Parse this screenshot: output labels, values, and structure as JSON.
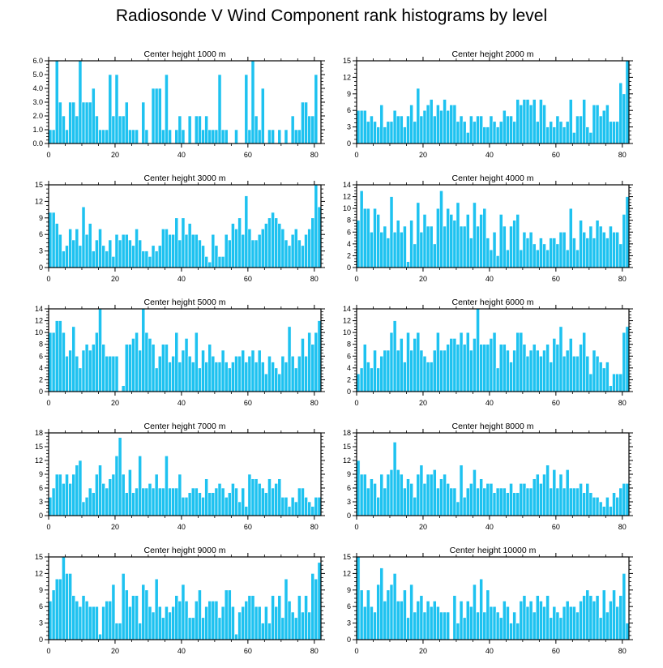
{
  "title": "Radiosonde V Wind Component rank histograms by level",
  "colors": {
    "bar": "#1ec2f0",
    "bar_edge": "#ffffff",
    "axis": "#000000"
  },
  "chart_data": [
    {
      "type": "bar",
      "title": "Center height 1000 m",
      "xlim": [
        0,
        82
      ],
      "ylim": [
        0,
        6
      ],
      "xticks": [
        0,
        20,
        40,
        60,
        80
      ],
      "xtick_labels": [
        "0",
        "20",
        "40",
        "60",
        "80"
      ],
      "yticks": [
        0,
        1,
        2,
        3,
        4,
        5,
        6
      ],
      "ytick_labels": [
        "0.0",
        "1.0",
        "2.0",
        "3.0",
        "4.0",
        "5.0",
        "6.0"
      ],
      "values": [
        1,
        1,
        6,
        3,
        2,
        1,
        3,
        3,
        2,
        6,
        3,
        3,
        3,
        4,
        2,
        1,
        1,
        1,
        5,
        2,
        5,
        2,
        2,
        3,
        1,
        1,
        1,
        0,
        3,
        1,
        0,
        4,
        4,
        4,
        1,
        5,
        1,
        0,
        1,
        2,
        1,
        0,
        2,
        0,
        2,
        2,
        1,
        2,
        1,
        1,
        1,
        5,
        1,
        1,
        0,
        0,
        1,
        0,
        0,
        5,
        1,
        6,
        2,
        1,
        4,
        0,
        1,
        1,
        0,
        1,
        0,
        1,
        0,
        2,
        1,
        1,
        3,
        3,
        2,
        2,
        5
      ]
    },
    {
      "type": "bar",
      "title": "Center height 2000 m",
      "xlim": [
        0,
        82
      ],
      "ylim": [
        0,
        15
      ],
      "xticks": [
        0,
        20,
        40,
        60,
        80
      ],
      "xtick_labels": [
        "0",
        "20",
        "40",
        "60",
        "80"
      ],
      "yticks": [
        0,
        3,
        6,
        9,
        12,
        15
      ],
      "ytick_labels": [
        "0",
        "3",
        "6",
        "9",
        "12",
        "15"
      ],
      "values": [
        6,
        6,
        6,
        4,
        5,
        4,
        3,
        7,
        3,
        4,
        4,
        6,
        5,
        5,
        3,
        5,
        7,
        4,
        10,
        5,
        6,
        7,
        8,
        5,
        7,
        6,
        8,
        6,
        7,
        7,
        4,
        5,
        4,
        2,
        5,
        4,
        5,
        5,
        3,
        3,
        5,
        4,
        3,
        4,
        6,
        5,
        5,
        4,
        8,
        7,
        8,
        8,
        7,
        8,
        4,
        8,
        7,
        3,
        4,
        3,
        5,
        4,
        3,
        4,
        8,
        2,
        5,
        5,
        8,
        3,
        2,
        7,
        7,
        5,
        6,
        7,
        4,
        4,
        4,
        11,
        9,
        15
      ]
    },
    {
      "type": "bar",
      "title": "Center height 3000 m",
      "xlim": [
        0,
        82
      ],
      "ylim": [
        0,
        15
      ],
      "xticks": [
        0,
        20,
        40,
        60,
        80
      ],
      "xtick_labels": [
        "0",
        "20",
        "40",
        "60",
        "80"
      ],
      "yticks": [
        0,
        3,
        6,
        9,
        12,
        15
      ],
      "ytick_labels": [
        "0",
        "3",
        "6",
        "9",
        "12",
        "15"
      ],
      "values": [
        10,
        10,
        8,
        6,
        3,
        4,
        7,
        5,
        7,
        4,
        11,
        6,
        8,
        3,
        5,
        7,
        4,
        3,
        5,
        2,
        6,
        5,
        6,
        6,
        5,
        4,
        7,
        5,
        3,
        3,
        2,
        4,
        3,
        4,
        7,
        7,
        6,
        6,
        9,
        5,
        9,
        6,
        8,
        6,
        6,
        5,
        4,
        2,
        1,
        6,
        4,
        2,
        2,
        6,
        5,
        8,
        7,
        9,
        6,
        13,
        7,
        5,
        5,
        6,
        7,
        8,
        9,
        10,
        9,
        8,
        7,
        5,
        4,
        6,
        7,
        5,
        4,
        6,
        7,
        9,
        15,
        11
      ]
    },
    {
      "type": "bar",
      "title": "Center height 4000 m",
      "xlim": [
        0,
        82
      ],
      "ylim": [
        0,
        14
      ],
      "xticks": [
        0,
        20,
        40,
        60,
        80
      ],
      "xtick_labels": [
        "0",
        "20",
        "40",
        "60",
        "80"
      ],
      "yticks": [
        0,
        2,
        4,
        6,
        8,
        10,
        12,
        14
      ],
      "ytick_labels": [
        "0",
        "2",
        "4",
        "6",
        "8",
        "10",
        "12",
        "14"
      ],
      "values": [
        8,
        13,
        10,
        10,
        6,
        10,
        9,
        6,
        7,
        5,
        12,
        6,
        8,
        6,
        7,
        1,
        8,
        4,
        11,
        6,
        9,
        7,
        7,
        4,
        10,
        13,
        7,
        10,
        9,
        8,
        11,
        7,
        7,
        9,
        5,
        11,
        7,
        9,
        10,
        5,
        3,
        6,
        2,
        9,
        7,
        3,
        7,
        8,
        9,
        3,
        6,
        5,
        6,
        4,
        3,
        5,
        4,
        3,
        5,
        5,
        4,
        6,
        6,
        3,
        10,
        5,
        3,
        8,
        6,
        5,
        7,
        5,
        8,
        7,
        6,
        5,
        7,
        6,
        6,
        4,
        9,
        12
      ]
    },
    {
      "type": "bar",
      "title": "Center height 5000 m",
      "xlim": [
        0,
        82
      ],
      "ylim": [
        0,
        14
      ],
      "xticks": [
        0,
        20,
        40,
        60,
        80
      ],
      "xtick_labels": [
        "0",
        "20",
        "40",
        "60",
        "80"
      ],
      "yticks": [
        0,
        2,
        4,
        6,
        8,
        10,
        12,
        14
      ],
      "ytick_labels": [
        "0",
        "2",
        "4",
        "6",
        "8",
        "10",
        "12",
        "14"
      ],
      "values": [
        10,
        10,
        12,
        12,
        10,
        6,
        7,
        11,
        6,
        4,
        7,
        8,
        7,
        8,
        10,
        14,
        8,
        6,
        6,
        6,
        6,
        0,
        1,
        8,
        8,
        9,
        10,
        7,
        14,
        10,
        9,
        8,
        4,
        6,
        8,
        8,
        5,
        6,
        10,
        5,
        7,
        9,
        6,
        5,
        10,
        4,
        7,
        5,
        8,
        6,
        5,
        5,
        7,
        5,
        4,
        5,
        6,
        6,
        7,
        5,
        6,
        7,
        5,
        7,
        5,
        3,
        6,
        5,
        4,
        3,
        6,
        5,
        11,
        6,
        4,
        6,
        9,
        6,
        10,
        8,
        10,
        12
      ]
    },
    {
      "type": "bar",
      "title": "Center height 6000 m",
      "xlim": [
        0,
        82
      ],
      "ylim": [
        0,
        14
      ],
      "xticks": [
        0,
        20,
        40,
        60,
        80
      ],
      "xtick_labels": [
        "0",
        "20",
        "40",
        "60",
        "80"
      ],
      "yticks": [
        0,
        2,
        4,
        6,
        8,
        10,
        12,
        14
      ],
      "ytick_labels": [
        "0",
        "2",
        "4",
        "6",
        "8",
        "10",
        "12",
        "14"
      ],
      "values": [
        3,
        4,
        8,
        5,
        4,
        7,
        4,
        6,
        7,
        7,
        10,
        12,
        7,
        9,
        5,
        10,
        7,
        9,
        10,
        7,
        6,
        5,
        5,
        7,
        10,
        7,
        7,
        8,
        9,
        9,
        8,
        10,
        8,
        10,
        7,
        9,
        14,
        8,
        8,
        8,
        9,
        10,
        4,
        8,
        8,
        7,
        5,
        7,
        10,
        10,
        8,
        6,
        7,
        8,
        7,
        6,
        7,
        8,
        5,
        9,
        8,
        11,
        6,
        7,
        9,
        6,
        6,
        8,
        10,
        6,
        3,
        7,
        6,
        5,
        4,
        5,
        1,
        3,
        3,
        3,
        10,
        11
      ]
    },
    {
      "type": "bar",
      "title": "Center height 7000 m",
      "xlim": [
        0,
        82
      ],
      "ylim": [
        0,
        18
      ],
      "xticks": [
        0,
        20,
        40,
        60,
        80
      ],
      "xtick_labels": [
        "0",
        "20",
        "40",
        "60",
        "80"
      ],
      "yticks": [
        0,
        3,
        6,
        9,
        12,
        15,
        18
      ],
      "ytick_labels": [
        "0",
        "3",
        "6",
        "9",
        "12",
        "15",
        "18"
      ],
      "values": [
        4,
        6,
        9,
        9,
        7,
        9,
        7,
        9,
        11,
        12,
        3,
        4,
        6,
        5,
        9,
        11,
        7,
        6,
        8,
        9,
        13,
        17,
        9,
        5,
        10,
        5,
        6,
        13,
        6,
        6,
        7,
        6,
        9,
        6,
        6,
        13,
        6,
        6,
        6,
        9,
        4,
        4,
        5,
        6,
        6,
        5,
        4,
        8,
        5,
        5,
        6,
        7,
        6,
        4,
        5,
        7,
        6,
        3,
        6,
        2,
        9,
        8,
        8,
        7,
        6,
        5,
        8,
        6,
        7,
        8,
        4,
        4,
        2,
        4,
        3,
        6,
        6,
        4,
        3,
        2,
        4,
        4
      ]
    },
    {
      "type": "bar",
      "title": "Center height 8000 m",
      "xlim": [
        0,
        82
      ],
      "ylim": [
        0,
        18
      ],
      "xticks": [
        0,
        20,
        40,
        60,
        80
      ],
      "xtick_labels": [
        "0",
        "20",
        "40",
        "60",
        "80"
      ],
      "yticks": [
        0,
        3,
        6,
        9,
        12,
        15,
        18
      ],
      "ytick_labels": [
        "0",
        "3",
        "6",
        "9",
        "12",
        "15",
        "18"
      ],
      "values": [
        12,
        9,
        9,
        6,
        8,
        7,
        4,
        9,
        6,
        9,
        10,
        16,
        10,
        9,
        6,
        8,
        7,
        4,
        9,
        11,
        7,
        9,
        9,
        10,
        6,
        8,
        9,
        7,
        6,
        6,
        3,
        11,
        4,
        6,
        7,
        10,
        6,
        8,
        6,
        7,
        7,
        5,
        6,
        6,
        6,
        5,
        7,
        5,
        5,
        7,
        7,
        6,
        6,
        8,
        9,
        7,
        9,
        11,
        6,
        10,
        6,
        9,
        6,
        10,
        6,
        6,
        6,
        7,
        5,
        7,
        5,
        4,
        4,
        3,
        2,
        4,
        2,
        5,
        4,
        6,
        7,
        7
      ]
    },
    {
      "type": "bar",
      "title": "Center height 9000 m",
      "xlim": [
        0,
        82
      ],
      "ylim": [
        0,
        15
      ],
      "xticks": [
        0,
        20,
        40,
        60,
        80
      ],
      "xtick_labels": [
        "0",
        "20",
        "40",
        "60",
        "80"
      ],
      "yticks": [
        0,
        3,
        6,
        9,
        12,
        15
      ],
      "ytick_labels": [
        "0",
        "3",
        "6",
        "9",
        "12",
        "15"
      ],
      "values": [
        7,
        9,
        11,
        11,
        15,
        12,
        12,
        8,
        7,
        6,
        8,
        7,
        6,
        6,
        6,
        1,
        6,
        7,
        7,
        10,
        3,
        3,
        12,
        9,
        6,
        8,
        8,
        3,
        10,
        9,
        6,
        5,
        11,
        6,
        4,
        6,
        5,
        6,
        8,
        7,
        10,
        7,
        4,
        4,
        7,
        9,
        4,
        6,
        7,
        7,
        7,
        4,
        6,
        9,
        9,
        6,
        1,
        5,
        6,
        7,
        8,
        8,
        6,
        6,
        3,
        6,
        3,
        8,
        6,
        8,
        4,
        11,
        7,
        5,
        4,
        8,
        5,
        8,
        5,
        12,
        11,
        14
      ]
    },
    {
      "type": "bar",
      "title": "Center height 10000 m",
      "xlim": [
        0,
        82
      ],
      "ylim": [
        0,
        15
      ],
      "xticks": [
        0,
        20,
        40,
        60,
        80
      ],
      "xtick_labels": [
        "0",
        "20",
        "40",
        "60",
        "80"
      ],
      "yticks": [
        0,
        3,
        6,
        9,
        12,
        15
      ],
      "ytick_labels": [
        "0",
        "3",
        "6",
        "9",
        "12",
        "15"
      ],
      "values": [
        15,
        9,
        6,
        9,
        6,
        5,
        10,
        13,
        7,
        9,
        10,
        12,
        7,
        7,
        9,
        4,
        10,
        5,
        7,
        8,
        5,
        7,
        6,
        7,
        6,
        5,
        5,
        5,
        0,
        8,
        3,
        7,
        4,
        7,
        6,
        10,
        5,
        11,
        5,
        9,
        6,
        6,
        5,
        4,
        7,
        6,
        3,
        5,
        3,
        7,
        8,
        6,
        7,
        5,
        8,
        7,
        6,
        8,
        4,
        6,
        5,
        4,
        6,
        7,
        6,
        6,
        5,
        7,
        8,
        9,
        8,
        7,
        8,
        4,
        9,
        5,
        7,
        9,
        6,
        8,
        12,
        3
      ]
    }
  ]
}
